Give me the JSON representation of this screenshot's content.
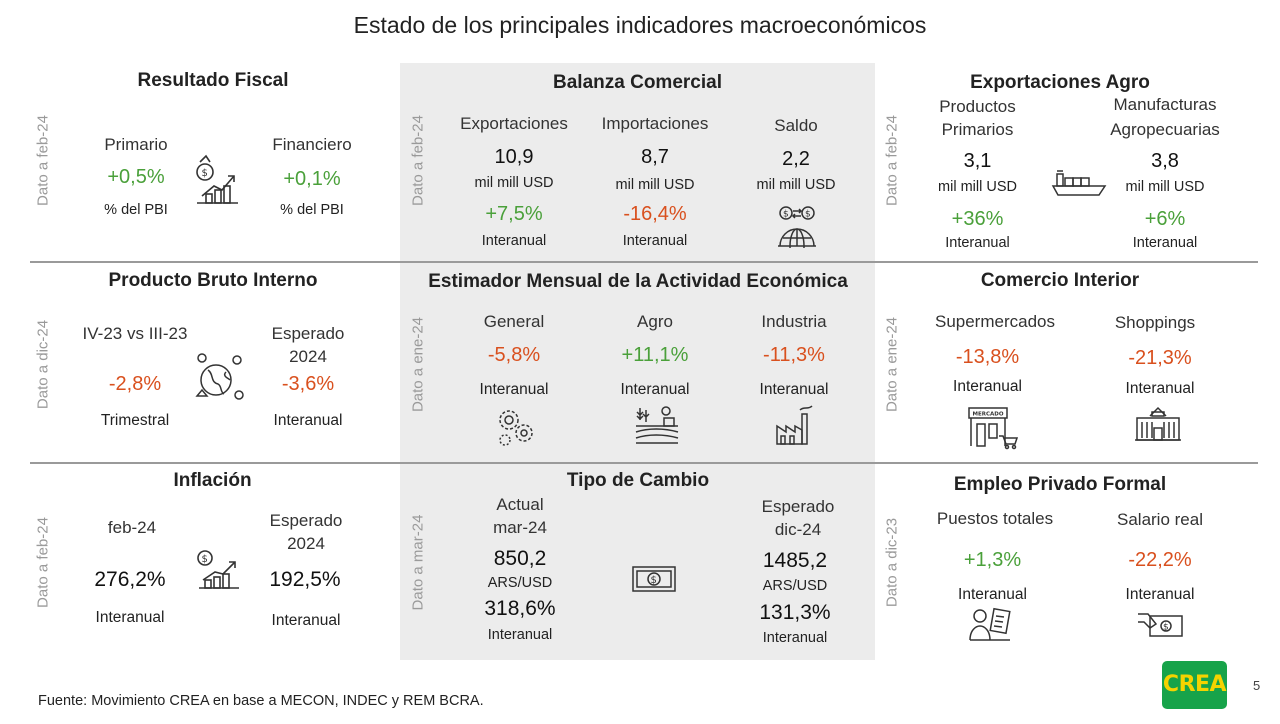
{
  "title": "Estado de los principales indicadores macroeconómicos",
  "fiscal": {
    "title": "Resultado Fiscal",
    "date": "Dato a feb-24",
    "primario": {
      "label": "Primario",
      "value": "+0,5%",
      "unit": "% del PBI"
    },
    "financiero": {
      "label": "Financiero",
      "value": "+0,1%",
      "unit": "% del PBI"
    }
  },
  "balanza": {
    "title": "Balanza Comercial",
    "date": "Dato a feb-24",
    "exportaciones": {
      "label": "Exportaciones",
      "value": "10,9",
      "unit": "mil mill USD",
      "change": "+7,5%",
      "change_label": "Interanual"
    },
    "importaciones": {
      "label": "Importaciones",
      "value": "8,7",
      "unit": "mil mill USD",
      "change": "-16,4%",
      "change_label": "Interanual"
    },
    "saldo": {
      "label": "Saldo",
      "value": "2,2",
      "unit": "mil mill USD"
    }
  },
  "agro": {
    "title": "Exportaciones Agro",
    "date": "Dato a feb-24",
    "primarios": {
      "label1": "Productos",
      "label2": "Primarios",
      "value": "3,1",
      "unit": "mil mill USD",
      "change": "+36%",
      "change_label": "Interanual"
    },
    "manufacturas": {
      "label1": "Manufacturas",
      "label2": "Agropecuarias",
      "value": "3,8",
      "unit": "mil mill USD",
      "change": "+6%",
      "change_label": "Interanual"
    }
  },
  "pbi": {
    "title": "Producto Bruto Interno",
    "date": "Dato a dic-24",
    "trimestral": {
      "label": "IV-23 vs III-23",
      "value": "-2,8%",
      "unit": "Trimestral"
    },
    "esperado": {
      "label1": "Esperado",
      "label2": "2024",
      "value": "-3,6%",
      "unit": "Interanual"
    }
  },
  "emae": {
    "title": "Estimador Mensual de la Actividad Económica",
    "date": "Dato a ene-24",
    "general": {
      "label": "General",
      "value": "-5,8%",
      "unit": "Interanual"
    },
    "agro": {
      "label": "Agro",
      "value": "+11,1%",
      "unit": "Interanual"
    },
    "industria": {
      "label": "Industria",
      "value": "-11,3%",
      "unit": "Interanual"
    }
  },
  "comercio": {
    "title": "Comercio Interior",
    "date": "Dato a ene-24",
    "super": {
      "label": "Supermercados",
      "value": "-13,8%",
      "unit": "Interanual",
      "sign": "MERCADO"
    },
    "shoppings": {
      "label": "Shoppings",
      "value": "-21,3%",
      "unit": "Interanual"
    }
  },
  "inflacion": {
    "title": "Inflación",
    "date": "Dato a feb-24",
    "actual": {
      "label": "feb-24",
      "value": "276,2%",
      "unit": "Interanual"
    },
    "esperado": {
      "label1": "Esperado",
      "label2": "2024",
      "value": "192,5%",
      "unit": "Interanual"
    }
  },
  "cambio": {
    "title": "Tipo de Cambio",
    "date": "Dato a mar-24",
    "actual": {
      "label1": "Actual",
      "label2": "mar-24",
      "value": "850,2",
      "unit": "ARS/USD",
      "change": "318,6%",
      "change_label": "Interanual"
    },
    "esperado": {
      "label1": "Esperado",
      "label2": "dic-24",
      "value": "1485,2",
      "unit": "ARS/USD",
      "change": "131,3%",
      "change_label": "Interanual"
    }
  },
  "empleo": {
    "title": "Empleo Privado Formal",
    "date": "Dato a dic-23",
    "puestos": {
      "label": "Puestos totales",
      "value": "+1,3%",
      "unit": "Interanual"
    },
    "salario": {
      "label": "Salario real",
      "value": "-22,2%",
      "unit": "Interanual"
    }
  },
  "footer": {
    "source": "Fuente: Movimiento CREA en base a MECON, INDEC y REM BCRA.",
    "logo": "CREA",
    "page": "5"
  },
  "colors": {
    "positive": "#4aa03a",
    "negative": "#d9501e",
    "panel": "#ececec",
    "logo_bg": "#17a34a",
    "logo_text": "#f5d300"
  }
}
